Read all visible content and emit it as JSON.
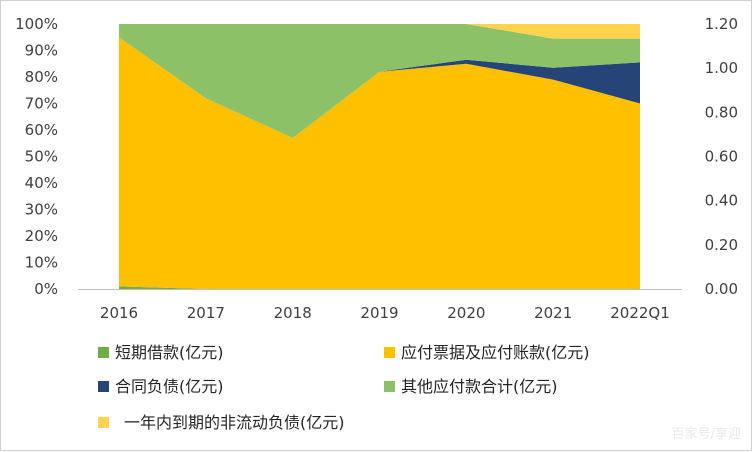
{
  "chart_data": {
    "type": "area",
    "stacked": "percent",
    "categories": [
      "2016",
      "2017",
      "2018",
      "2019",
      "2020",
      "2021",
      "2022Q1"
    ],
    "y_left": {
      "range": [
        0,
        100
      ],
      "ticks": [
        "0%",
        "10%",
        "20%",
        "30%",
        "40%",
        "50%",
        "60%",
        "70%",
        "80%",
        "90%",
        "100%"
      ]
    },
    "y_right": {
      "range": [
        0,
        1.2
      ],
      "ticks": [
        "0.00",
        "0.20",
        "0.40",
        "0.60",
        "0.80",
        "1.00",
        "1.20"
      ]
    },
    "series": [
      {
        "name": "短期借款(亿元)",
        "color": "#70ad47",
        "values": [
          1,
          0,
          0,
          0,
          0,
          0,
          0
        ]
      },
      {
        "name": "应付票据及应付账款(亿元)",
        "color": "#ffc000",
        "values": [
          94,
          72,
          57,
          82,
          85,
          79,
          70
        ]
      },
      {
        "name": "合同负债(亿元)",
        "color": "#264478",
        "values": [
          0,
          0,
          0,
          0,
          1.5,
          4.5,
          15.5
        ]
      },
      {
        "name": "其他应付款合计(亿元)",
        "color": "#8cc168",
        "values": [
          5,
          28,
          43,
          18,
          13.5,
          11,
          9
        ]
      },
      {
        "name": "一年内到期的非流动负债(亿元)",
        "color": "#ffd34d",
        "values": [
          0,
          0,
          0,
          0,
          0,
          5.5,
          5.5
        ]
      }
    ],
    "legend_position": "bottom",
    "grid": false
  },
  "watermark": "百家号/享迎"
}
